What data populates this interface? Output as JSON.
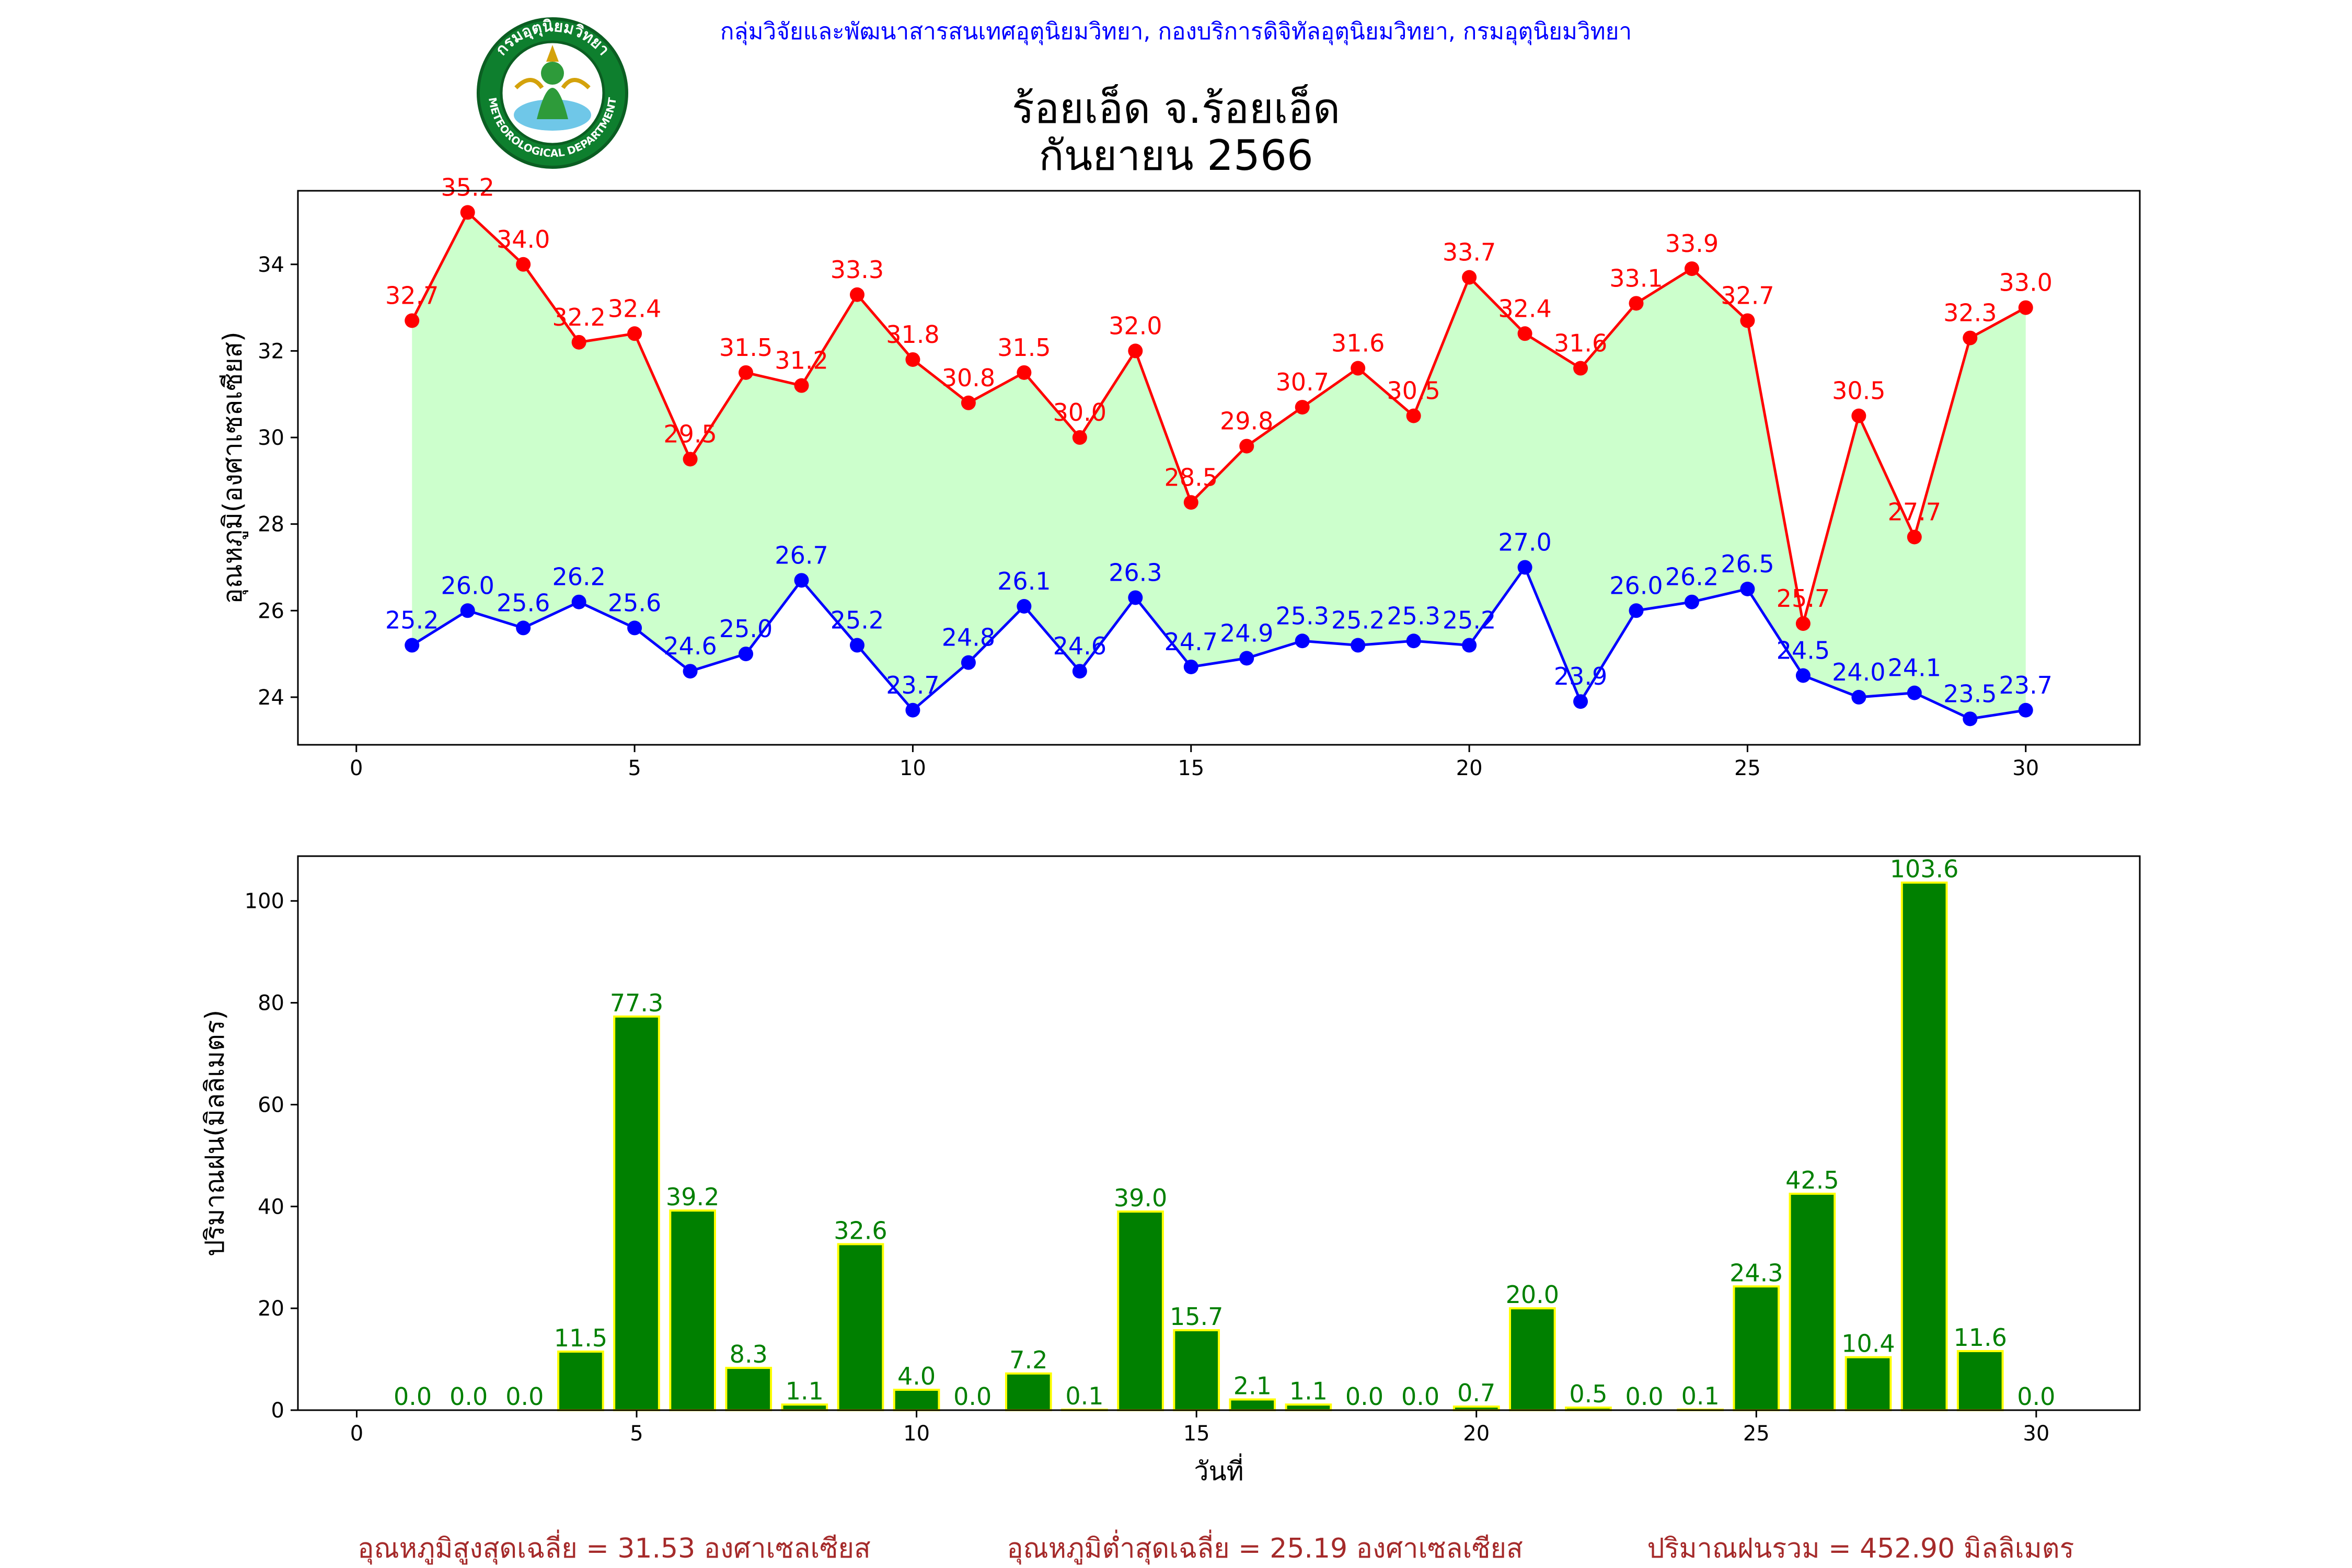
{
  "header": {
    "agency_line": "กลุ่มวิจัยและพัฒนาสารสนเทศอุตุนิยมวิทยา, กองบริการดิจิทัลอุตุนิยมวิทยา, กรมอุตุนิยมวิทยา",
    "title_line1": "ร้อยเอ็ด จ.ร้อยเอ็ด",
    "title_line2": "กันยายน 2566",
    "logo": {
      "icon": "meteorological-department-seal-icon",
      "arc_top_text": "กรมอุตุนิยมวิทยา",
      "arc_bottom_text": "METEOROLOGICAL DEPARTMENT"
    }
  },
  "colors": {
    "header_text": "#0000ff",
    "max_line": "#ff0000",
    "min_line": "#0000ff",
    "temp_fill": "#ccffcc",
    "rain_bar": "#008000",
    "rain_edge": "#ffff00",
    "rain_label": "#008000",
    "summary_text": "#a52a2a"
  },
  "chart_data": [
    {
      "type": "line",
      "ylabel": "อุณหภูมิ(องศาเซลเซียส)",
      "xlabel": "",
      "xlim": [
        -1.05,
        32.05
      ],
      "ylim": [
        22.9,
        35.7
      ],
      "xticks": [
        0,
        5,
        10,
        15,
        20,
        25,
        30
      ],
      "yticks": [
        24,
        26,
        28,
        30,
        32,
        34
      ],
      "grid": false,
      "fill_between_series": true,
      "x": [
        1,
        2,
        3,
        4,
        5,
        6,
        7,
        8,
        9,
        10,
        11,
        12,
        13,
        14,
        15,
        16,
        17,
        18,
        19,
        20,
        21,
        22,
        23,
        24,
        25,
        26,
        27,
        28,
        29,
        30
      ],
      "series": [
        {
          "key": "max",
          "values": [
            32.7,
            35.2,
            34.0,
            32.2,
            32.4,
            29.5,
            31.5,
            31.2,
            33.3,
            31.8,
            30.8,
            31.5,
            30.0,
            32.0,
            28.5,
            29.8,
            30.7,
            31.6,
            30.5,
            33.7,
            32.4,
            31.6,
            33.1,
            33.9,
            32.7,
            25.7,
            30.5,
            27.7,
            32.3,
            33.0
          ],
          "labels": [
            "32.7",
            "35.2",
            "34.0",
            "32.2",
            "32.4",
            "29.5",
            "31.5",
            "31.2",
            "33.3",
            "31.8",
            "30.8",
            "31.5",
            "30.0",
            "32.0",
            "28.5",
            "29.8",
            "30.7",
            "31.6",
            "30.5",
            "33.7",
            "32.4",
            "31.6",
            "33.1",
            "33.9",
            "32.7",
            "25.7",
            "30.5",
            "27.7",
            "32.3",
            "33.0"
          ]
        },
        {
          "key": "min",
          "values": [
            25.2,
            26.0,
            25.6,
            26.2,
            25.6,
            24.6,
            25.0,
            26.7,
            25.2,
            23.7,
            24.8,
            26.1,
            24.6,
            26.3,
            24.7,
            24.9,
            25.3,
            25.2,
            25.3,
            25.2,
            27.0,
            23.9,
            26.0,
            26.2,
            26.5,
            24.5,
            24.0,
            24.1,
            23.5,
            23.7
          ],
          "labels": [
            "25.2",
            "26.0",
            "25.6",
            "26.2",
            "25.6",
            "24.6",
            "25.0",
            "26.7",
            "25.2",
            "23.7",
            "24.8",
            "26.1",
            "24.6",
            "26.3",
            "24.7",
            "24.9",
            "25.3",
            "25.2",
            "25.3",
            "25.2",
            "27.0",
            "23.9",
            "26.0",
            "26.2",
            "26.5",
            "24.5",
            "24.0",
            "24.1",
            "23.5",
            "23.7"
          ]
        }
      ]
    },
    {
      "type": "bar",
      "ylabel": "ปริมาณฝน(มิลลิเมตร)",
      "xlabel": "วันที่",
      "xlim": [
        -1.05,
        31.85
      ],
      "ylim": [
        0,
        108.8
      ],
      "xticks": [
        0,
        5,
        10,
        15,
        20,
        25,
        30
      ],
      "yticks": [
        0,
        20,
        40,
        60,
        80,
        100
      ],
      "grid": false,
      "x": [
        1,
        2,
        3,
        4,
        5,
        6,
        7,
        8,
        9,
        10,
        11,
        12,
        13,
        14,
        15,
        16,
        17,
        18,
        19,
        20,
        21,
        22,
        23,
        24,
        25,
        26,
        27,
        28,
        29,
        30
      ],
      "values": [
        0.0,
        0.0,
        0.0,
        11.5,
        77.3,
        39.2,
        8.3,
        1.1,
        32.6,
        4.0,
        0.0,
        7.2,
        0.1,
        39.0,
        15.7,
        2.1,
        1.1,
        0.0,
        0.0,
        0.7,
        20.0,
        0.5,
        0.0,
        0.1,
        24.3,
        42.5,
        10.4,
        103.6,
        11.6,
        0.0
      ],
      "labels": [
        "0.0",
        "0.0",
        "0.0",
        "11.5",
        "77.3",
        "39.2",
        "8.3",
        "1.1",
        "32.6",
        "4.0",
        "0.0",
        "7.2",
        "0.1",
        "39.0",
        "15.7",
        "2.1",
        "1.1",
        "0.0",
        "0.0",
        "0.7",
        "20.0",
        "0.5",
        "0.0",
        "0.1",
        "24.3",
        "42.5",
        "10.4",
        "103.6",
        "11.6",
        "0.0"
      ]
    }
  ],
  "summary": {
    "avg_max": "อุณหภูมิสูงสุดเฉลี่ย = 31.53 องศาเซลเซียส",
    "avg_min": "อุณหภูมิต่ำสุดเฉลี่ย = 25.19 องศาเซลเซียส",
    "total_rain": "ปริมาณฝนรวม = 452.90 มิลลิเมตร"
  }
}
